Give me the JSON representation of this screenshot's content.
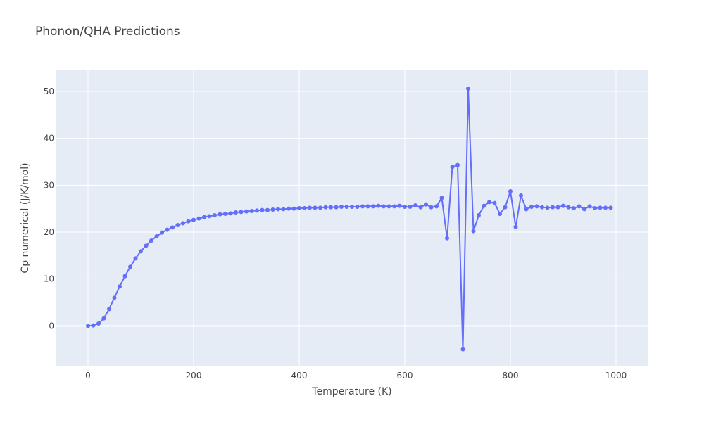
{
  "chart_data": {
    "type": "line",
    "title": "Phonon/QHA Predictions",
    "xlabel": "Temperature (K)",
    "ylabel": "Cp numerical (J/K/mol)",
    "xlim": [
      -60,
      1060
    ],
    "ylim": [
      -8.5,
      54.5
    ],
    "x_ticks": [
      0,
      200,
      400,
      600,
      800,
      1000
    ],
    "y_ticks": [
      0,
      10,
      20,
      30,
      40,
      50
    ],
    "grid": true,
    "legend": "none",
    "line_color": "#636efa",
    "plot_bg": "#e5ecf6",
    "series": [
      {
        "x": [
          0,
          10,
          20,
          30,
          40,
          50,
          60,
          70,
          80,
          90,
          100,
          110,
          120,
          130,
          140,
          150,
          160,
          170,
          180,
          190,
          200,
          210,
          220,
          230,
          240,
          250,
          260,
          270,
          280,
          290,
          300,
          310,
          320,
          330,
          340,
          350,
          360,
          370,
          380,
          390,
          400,
          410,
          420,
          430,
          440,
          450,
          460,
          470,
          480,
          490,
          500,
          510,
          520,
          530,
          540,
          550,
          560,
          570,
          580,
          590,
          600,
          610,
          620,
          630,
          640,
          650,
          660,
          670,
          680,
          690,
          700,
          710,
          720,
          730,
          740,
          750,
          760,
          770,
          780,
          790,
          800,
          810,
          820,
          830,
          840,
          850,
          860,
          870,
          880,
          890,
          900,
          910,
          920,
          930,
          940,
          950,
          960,
          970,
          980,
          990
        ],
        "y": [
          0.0,
          0.1,
          0.5,
          1.6,
          3.6,
          6.0,
          8.4,
          10.6,
          12.6,
          14.4,
          15.9,
          17.1,
          18.2,
          19.1,
          19.9,
          20.5,
          21.0,
          21.5,
          21.9,
          22.3,
          22.6,
          22.9,
          23.2,
          23.4,
          23.6,
          23.8,
          23.9,
          24.0,
          24.2,
          24.3,
          24.4,
          24.5,
          24.6,
          24.7,
          24.7,
          24.8,
          24.9,
          24.9,
          25.0,
          25.0,
          25.1,
          25.1,
          25.2,
          25.2,
          25.2,
          25.3,
          25.3,
          25.3,
          25.4,
          25.4,
          25.4,
          25.4,
          25.5,
          25.5,
          25.5,
          25.6,
          25.5,
          25.5,
          25.5,
          25.6,
          25.4,
          25.4,
          25.7,
          25.3,
          25.9,
          25.3,
          25.5,
          27.3,
          18.7,
          33.9,
          34.3,
          -5.0,
          50.6,
          20.2,
          23.6,
          25.6,
          26.4,
          26.2,
          23.9,
          25.3,
          28.7,
          21.1,
          27.8,
          24.9,
          25.4,
          25.5,
          25.3,
          25.2,
          25.3,
          25.3,
          25.6,
          25.3,
          25.1,
          25.5,
          24.9,
          25.5,
          25.1,
          25.2,
          25.2,
          25.2
        ]
      }
    ]
  }
}
